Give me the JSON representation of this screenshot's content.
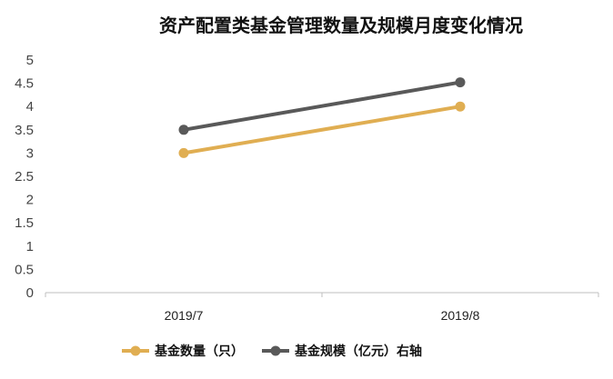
{
  "chart_data": {
    "type": "line",
    "title": "资产配置类基金管理数量及规模月度变化情况",
    "categories": [
      "2019/7",
      "2019/8"
    ],
    "ylim": [
      0,
      5
    ],
    "yticks": [
      "0",
      "0.5",
      "1",
      "1.5",
      "2",
      "2.5",
      "3",
      "3.5",
      "4",
      "4.5",
      "5"
    ],
    "grid": false,
    "legend_position": "bottom",
    "series": [
      {
        "name": "基金数量（只）",
        "values": [
          3,
          4
        ],
        "color": "#E0AE52"
      },
      {
        "name": "基金规模（亿元）右轴",
        "values": [
          3.5,
          4.52
        ],
        "color": "#595959"
      }
    ]
  }
}
